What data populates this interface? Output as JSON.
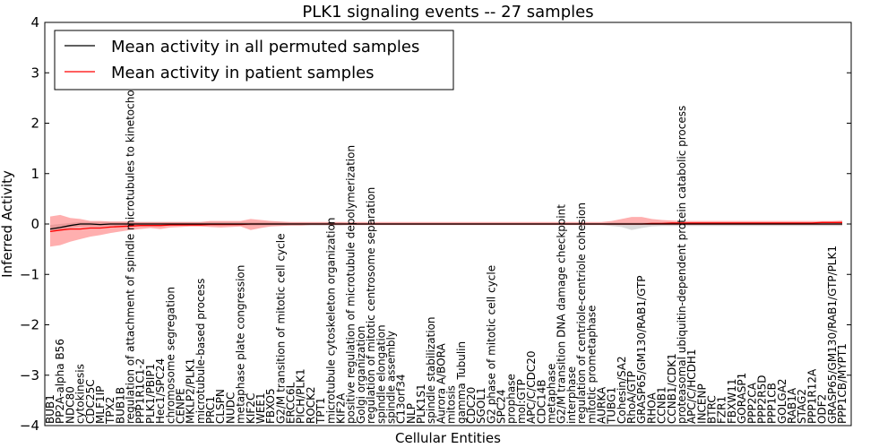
{
  "chart_data": {
    "type": "line",
    "title": "PLK1 signaling events -- 27 samples",
    "xlabel": "Cellular Entities",
    "ylabel": "Inferred Activity",
    "ylim": [
      -4,
      4
    ],
    "yticks": [
      4,
      3,
      2,
      1,
      0,
      -1,
      -2,
      -3,
      -4
    ],
    "ytick_labels": [
      "4",
      "3",
      "2",
      "1",
      "0",
      "−1",
      "−2",
      "−3",
      "−4"
    ],
    "legend_position": "top-left",
    "categories": [
      "BUB1",
      "PP2A-alpha B56",
      "NDC80",
      "cytokinesis",
      "CDC25C",
      "MLF1IP",
      "TPX2",
      "BUB1B",
      "regulation of attachment of spindle microtubules to kinetochore",
      "PPP1R1C1-2",
      "PLK1/PBIP1",
      "Hec1/SPC24",
      "chromosome segregation",
      "CENPE",
      "MKLP2/PLK1",
      "microtubule-based process",
      "PRC1",
      "CLSPN",
      "NUDC",
      "metaphase plate congression",
      "KIF2C",
      "WEE1",
      "FBXO5",
      "G2/M transition of mitotic cell cycle",
      "ERCC6L",
      "PICH/PLK1",
      "ROCK2",
      "TPT1",
      "microtubule cytoskeleton organization",
      "KIF2A",
      "positive regulation of microtubule depolymerization",
      "Golgi organization",
      "regulation of mitotic centrosome separation",
      "spindle elongation",
      "spindle assembly",
      "C13orf34",
      "NLP",
      "PLK1S1",
      "spindle stabilization",
      "Aurora A/BORA",
      "mitosis",
      "gamma Tubulin",
      "CDC20",
      "SGOL1",
      "G2 phase of mitotic cell cycle",
      "SPC24",
      "prophase",
      "mol:GTP",
      "APC/C/CDC20",
      "CDC14B",
      "metaphase",
      "G2/M transition DNA damage checkpoint",
      "interphase",
      "regulation of centriole-centriole cohesion",
      "mitotic prometaphase",
      "AURKA",
      "TUBG1",
      "Cohesin/SA2",
      "RhoA/GTP",
      "GRASP65/GM130/RAB1/GTP",
      "RHOA",
      "CCNB1",
      "CCNB1/CDK1",
      "proteasomal ubiquitin-dependent protein catabolic process",
      "APC/C/HCDH1",
      "INCENP",
      "BTRC",
      "FZR1",
      "FBXW11",
      "GORASP1",
      "PPP2CA",
      "PPP2R5D",
      "PPP1CB",
      "GOLGA2",
      "RAB1A",
      "STAG2",
      "PPP1R12A",
      "ODF2",
      "GRASP65/GM130/RAB1/GTP/PLK1",
      "PPP1CB/MYPT1"
    ],
    "series": [
      {
        "name": "Mean activity in all permuted samples",
        "color": "#000000",
        "values": [
          -0.1,
          -0.07,
          -0.03,
          0,
          0,
          -0.01,
          0,
          0,
          0,
          0,
          0,
          0,
          0,
          0,
          0,
          0,
          0,
          0,
          0,
          0,
          0,
          0,
          0,
          0,
          0,
          0,
          0,
          0,
          0,
          0,
          0,
          0,
          0,
          0,
          0,
          0,
          0,
          0,
          0,
          0,
          0,
          0,
          0,
          0,
          0,
          0,
          0,
          0,
          0,
          0,
          0,
          0,
          0,
          0,
          0,
          0,
          0,
          0,
          0,
          0,
          0,
          0,
          0,
          0,
          0,
          0,
          0,
          0,
          0,
          0,
          0,
          0,
          0,
          0,
          0,
          0,
          0,
          0,
          0,
          0
        ],
        "band_low": [
          -0.15,
          -0.12,
          -0.08,
          -0.05,
          -0.05,
          -0.05,
          -0.04,
          -0.04,
          -0.03,
          -0.03,
          -0.03,
          -0.03,
          -0.03,
          -0.03,
          -0.03,
          -0.03,
          -0.03,
          -0.03,
          -0.03,
          -0.03,
          -0.03,
          -0.03,
          -0.03,
          -0.03,
          -0.03,
          -0.03,
          -0.03,
          -0.03,
          -0.03,
          -0.03,
          -0.02,
          -0.02,
          -0.02,
          -0.02,
          -0.02,
          -0.02,
          -0.02,
          -0.02,
          -0.02,
          -0.02,
          -0.02,
          -0.02,
          -0.02,
          -0.02,
          -0.02,
          -0.02,
          -0.02,
          -0.02,
          -0.02,
          -0.02,
          -0.02,
          -0.02,
          -0.02,
          -0.02,
          -0.02,
          -0.02,
          -0.04,
          -0.06,
          -0.12,
          -0.08,
          -0.05,
          -0.04,
          -0.04,
          -0.04,
          -0.04,
          -0.04,
          -0.04,
          -0.04,
          -0.04,
          -0.04,
          -0.04,
          -0.04,
          -0.04,
          -0.04,
          -0.04,
          -0.04,
          -0.04,
          -0.04,
          -0.04,
          -0.04
        ],
        "band_high": [
          -0.02,
          0.0,
          0.02,
          0.04,
          0.04,
          0.04,
          0.04,
          0.04,
          0.04,
          0.04,
          0.04,
          0.04,
          0.04,
          0.04,
          0.04,
          0.04,
          0.04,
          0.04,
          0.04,
          0.04,
          0.04,
          0.04,
          0.04,
          0.04,
          0.03,
          0.03,
          0.03,
          0.03,
          0.03,
          0.03,
          0.02,
          0.02,
          0.02,
          0.02,
          0.02,
          0.02,
          0.02,
          0.02,
          0.02,
          0.02,
          0.02,
          0.02,
          0.02,
          0.02,
          0.02,
          0.02,
          0.02,
          0.02,
          0.02,
          0.02,
          0.02,
          0.02,
          0.02,
          0.02,
          0.02,
          0.02,
          0.03,
          0.03,
          0.03,
          0.03,
          0.03,
          0.03,
          0.03,
          0.03,
          0.03,
          0.03,
          0.03,
          0.03,
          0.03,
          0.03,
          0.03,
          0.03,
          0.03,
          0.03,
          0.03,
          0.03,
          0.03,
          0.03,
          0.03,
          0.03
        ]
      },
      {
        "name": "Mean activity in patient samples",
        "color": "#ff0000",
        "values": [
          -0.15,
          -0.12,
          -0.1,
          -0.1,
          -0.08,
          -0.08,
          -0.06,
          -0.05,
          -0.04,
          -0.03,
          -0.03,
          -0.03,
          -0.02,
          -0.02,
          -0.02,
          -0.02,
          -0.01,
          -0.01,
          -0.01,
          -0.01,
          0,
          0,
          0,
          0,
          0,
          0,
          0,
          0,
          0,
          0,
          0,
          0,
          0,
          0,
          0,
          0,
          0,
          0,
          0,
          0,
          0,
          0,
          0,
          0,
          0,
          0,
          0,
          0,
          0,
          0,
          0,
          0,
          0,
          0,
          0,
          0,
          0,
          0,
          0,
          0,
          0.01,
          0.01,
          0.02,
          0.02,
          0.02,
          0.02,
          0.02,
          0.02,
          0.02,
          0.02,
          0.02,
          0.02,
          0.02,
          0.02,
          0.02,
          0.02,
          0.02,
          0.03,
          0.03,
          0.03
        ],
        "band_low": [
          -0.45,
          -0.42,
          -0.35,
          -0.3,
          -0.25,
          -0.22,
          -0.18,
          -0.15,
          -0.12,
          -0.1,
          -0.08,
          -0.1,
          -0.07,
          -0.06,
          -0.05,
          -0.05,
          -0.06,
          -0.07,
          -0.06,
          -0.05,
          -0.12,
          -0.08,
          -0.05,
          -0.04,
          -0.03,
          -0.03,
          -0.02,
          -0.02,
          -0.02,
          -0.02,
          -0.02,
          -0.02,
          -0.02,
          -0.02,
          -0.02,
          -0.02,
          -0.02,
          -0.02,
          -0.02,
          -0.02,
          -0.02,
          -0.02,
          -0.02,
          -0.02,
          -0.02,
          -0.02,
          -0.02,
          -0.02,
          -0.02,
          -0.02,
          -0.02,
          -0.02,
          -0.02,
          -0.02,
          -0.02,
          -0.02,
          -0.02,
          -0.02,
          -0.02,
          -0.02,
          -0.02,
          -0.02,
          -0.02,
          -0.02,
          -0.02,
          -0.02,
          -0.02,
          -0.02,
          -0.02,
          -0.02,
          -0.02,
          -0.02,
          -0.02,
          -0.02,
          -0.02,
          -0.02,
          -0.02,
          -0.02,
          -0.02,
          -0.02
        ],
        "band_high": [
          0.15,
          0.18,
          0.12,
          0.1,
          0.06,
          0.06,
          0.05,
          0.05,
          0.05,
          0.04,
          0.04,
          0.04,
          0.04,
          0.04,
          0.04,
          0.04,
          0.06,
          0.06,
          0.06,
          0.06,
          0.1,
          0.08,
          0.06,
          0.05,
          0.04,
          0.04,
          0.04,
          0.04,
          0.04,
          0.04,
          0.04,
          0.04,
          0.04,
          0.04,
          0.04,
          0.04,
          0.04,
          0.04,
          0.04,
          0.04,
          0.04,
          0.04,
          0.04,
          0.04,
          0.04,
          0.04,
          0.04,
          0.04,
          0.04,
          0.04,
          0.04,
          0.04,
          0.04,
          0.04,
          0.04,
          0.04,
          0.06,
          0.1,
          0.14,
          0.14,
          0.1,
          0.08,
          0.07,
          0.06,
          0.06,
          0.06,
          0.06,
          0.06,
          0.06,
          0.06,
          0.06,
          0.06,
          0.06,
          0.06,
          0.06,
          0.06,
          0.06,
          0.06,
          0.06,
          0.07
        ]
      }
    ]
  }
}
